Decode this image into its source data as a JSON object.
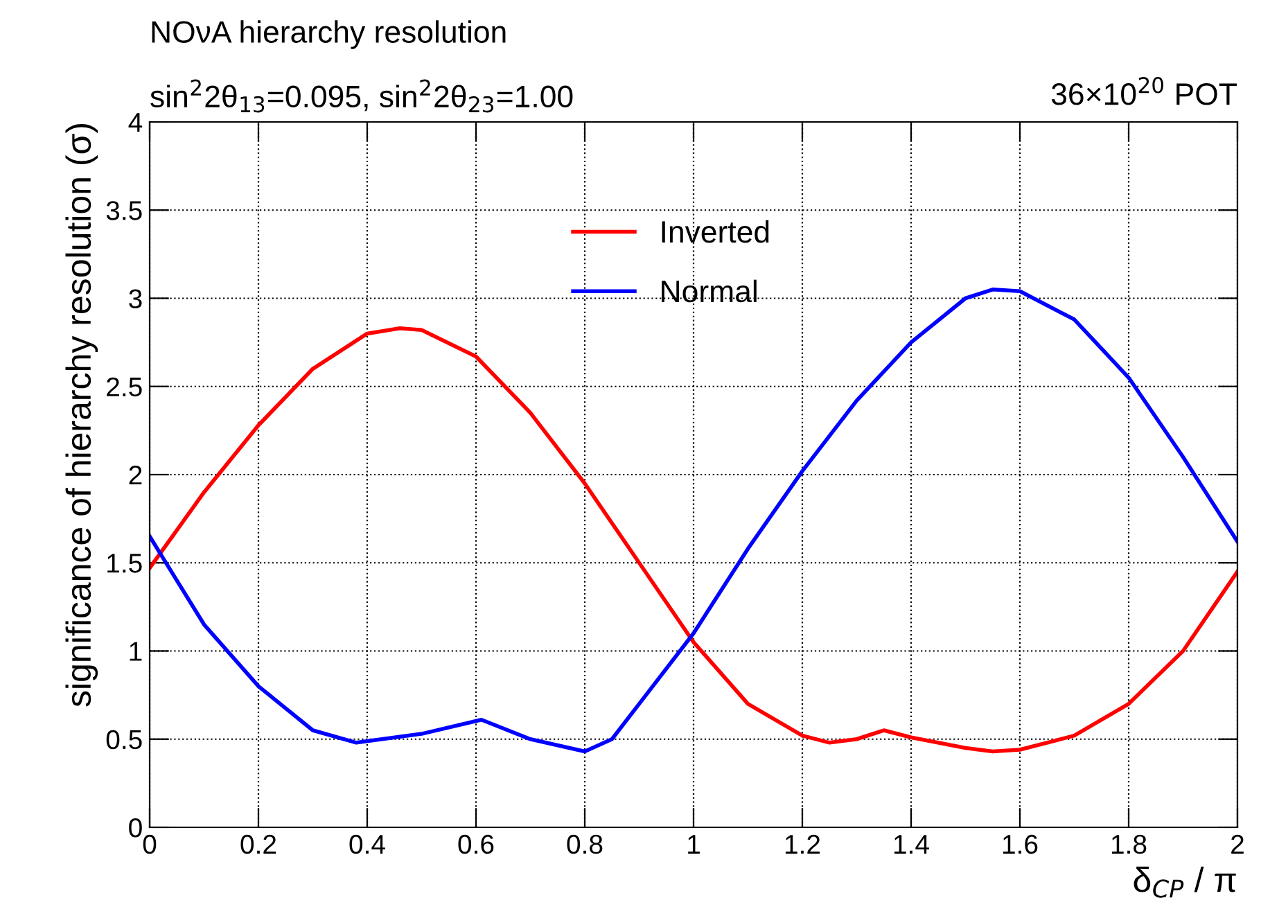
{
  "chart_data": {
    "type": "line",
    "title": "NOνA hierarchy resolution",
    "subtitle": "sin$^{2}$2θ$_{13}$=0.095, sin$^{2}$2θ$_{23}$=1.00",
    "annotations": [
      "36×10$^{20}$ POT"
    ],
    "xlabel": "δ$_{CP}$ / π",
    "ylabel": "significance of hierarchy resolution (σ)",
    "xlim": [
      0,
      2
    ],
    "ylim": [
      0,
      4
    ],
    "xticks": [
      0,
      0.2,
      0.4,
      0.6,
      0.8,
      1,
      1.2,
      1.4,
      1.6,
      1.8,
      2
    ],
    "yticks": [
      0,
      0.5,
      1,
      1.5,
      2,
      2.5,
      3,
      3.5,
      4
    ],
    "grid": true,
    "legend": "top",
    "line_style": "solid",
    "series": [
      {
        "name": "Inverted",
        "color": "#ff0000",
        "x": [
          0,
          0.1,
          0.2,
          0.3,
          0.4,
          0.46,
          0.5,
          0.6,
          0.7,
          0.8,
          0.9,
          1.0,
          1.1,
          1.2,
          1.25,
          1.3,
          1.35,
          1.4,
          1.5,
          1.55,
          1.6,
          1.7,
          1.8,
          1.9,
          2.0
        ],
        "values": [
          1.47,
          1.9,
          2.28,
          2.6,
          2.8,
          2.83,
          2.82,
          2.67,
          2.35,
          1.95,
          1.5,
          1.05,
          0.7,
          0.52,
          0.48,
          0.5,
          0.55,
          0.51,
          0.45,
          0.43,
          0.44,
          0.52,
          0.7,
          1.0,
          1.45
        ]
      },
      {
        "name": "Normal",
        "color": "#0000ff",
        "x": [
          0,
          0.1,
          0.2,
          0.3,
          0.38,
          0.5,
          0.61,
          0.7,
          0.8,
          0.85,
          0.9,
          1.0,
          1.1,
          1.2,
          1.3,
          1.4,
          1.5,
          1.55,
          1.6,
          1.7,
          1.8,
          1.9,
          2.0
        ],
        "values": [
          1.65,
          1.15,
          0.8,
          0.55,
          0.48,
          0.53,
          0.61,
          0.5,
          0.43,
          0.5,
          0.7,
          1.1,
          1.58,
          2.02,
          2.42,
          2.75,
          3.0,
          3.05,
          3.04,
          2.88,
          2.55,
          2.1,
          1.62
        ]
      }
    ]
  }
}
